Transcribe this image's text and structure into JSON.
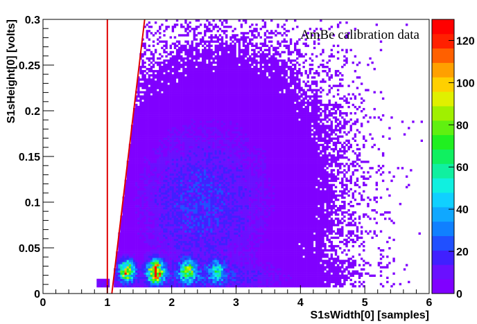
{
  "chart_data": {
    "type": "heatmap",
    "title": "",
    "annotation": "AmBe calibration data",
    "xlabel": "S1sWidth[0] [samples]",
    "ylabel": "S1sHeight[0] [volts]",
    "xlim": [
      0,
      6
    ],
    "ylim": [
      0,
      0.3
    ],
    "x_ticks": [
      0,
      1,
      2,
      3,
      4,
      5,
      6
    ],
    "x_tick_labels": [
      "0",
      "1",
      "2",
      "3",
      "4",
      "5",
      "6"
    ],
    "y_ticks": [
      0,
      0.05,
      0.1,
      0.15,
      0.2,
      0.25,
      0.3
    ],
    "y_tick_labels": [
      "0",
      "0.05",
      "0.1",
      "0.15",
      "0.2",
      "0.25",
      "0.3"
    ],
    "color_scale": {
      "range": [
        0,
        130
      ],
      "ticks": [
        0,
        20,
        40,
        60,
        80,
        100,
        120
      ],
      "tick_labels": [
        "0",
        "20",
        "40",
        "60",
        "80",
        "100",
        "120"
      ],
      "colors": [
        "#8000ff",
        "#6a10ff",
        "#4020ff",
        "#2050ff",
        "#1080ff",
        "#10a8ff",
        "#10d0ff",
        "#10f0e0",
        "#10f0a0",
        "#10f060",
        "#20f020",
        "#60f010",
        "#a0f000",
        "#e0f000",
        "#ffd000",
        "#ffa000",
        "#ff6000",
        "#ff2000",
        "#ff0000"
      ]
    },
    "cut_lines": [
      {
        "points": [
          [
            1.0,
            0.0
          ],
          [
            1.0,
            0.3
          ]
        ],
        "color": "#e00000"
      },
      {
        "points": [
          [
            1.07,
            0.0
          ],
          [
            1.58,
            0.3
          ]
        ],
        "color": "#e00000"
      }
    ],
    "clusters": [
      {
        "x": 1.3,
        "y": 0.025,
        "peak": 90
      },
      {
        "x": 1.75,
        "y": 0.024,
        "peak": 120
      },
      {
        "x": 2.25,
        "y": 0.025,
        "peak": 60
      },
      {
        "x": 2.7,
        "y": 0.025,
        "peak": 35
      }
    ],
    "grid": false,
    "legend": "colorbar-right"
  }
}
